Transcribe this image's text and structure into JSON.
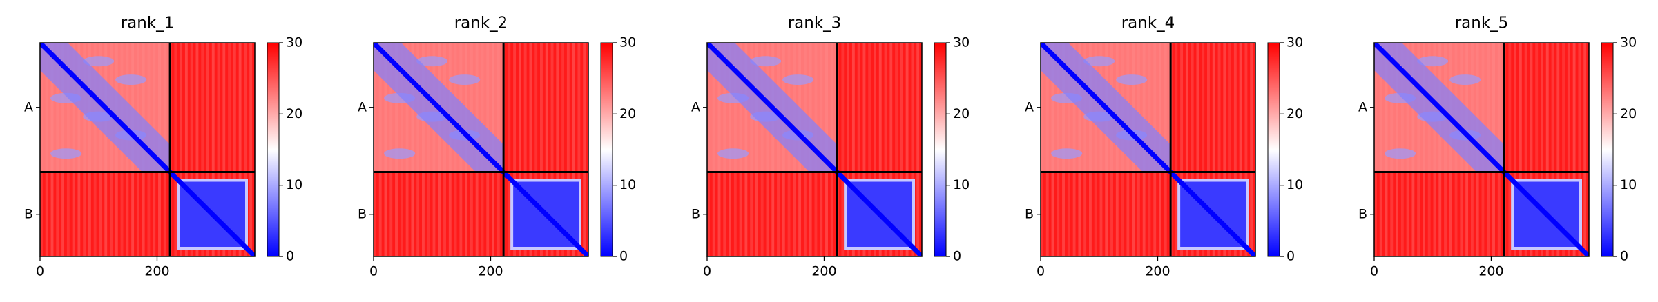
{
  "chart_data": [
    {
      "type": "heatmap",
      "title": "rank_1",
      "xlim": [
        0,
        367
      ],
      "ylim": [
        0,
        367
      ],
      "xticks": [
        0,
        200
      ],
      "yticks": [
        {
          "value": 111,
          "label": "A"
        },
        {
          "value": 294.5,
          "label": "B"
        }
      ],
      "boundaries": [
        222
      ],
      "clim": [
        0,
        30
      ],
      "cticks": [
        0,
        10,
        20,
        30
      ],
      "colormap": [
        "#0000ff",
        "#ffffff",
        "#ff0000"
      ]
    },
    {
      "type": "heatmap",
      "title": "rank_2",
      "xlim": [
        0,
        367
      ],
      "ylim": [
        0,
        367
      ],
      "xticks": [
        0,
        200
      ],
      "yticks": [
        {
          "value": 111,
          "label": "A"
        },
        {
          "value": 294.5,
          "label": "B"
        }
      ],
      "boundaries": [
        222
      ],
      "clim": [
        0,
        30
      ],
      "cticks": [
        0,
        10,
        20,
        30
      ],
      "colormap": [
        "#0000ff",
        "#ffffff",
        "#ff0000"
      ]
    },
    {
      "type": "heatmap",
      "title": "rank_3",
      "xlim": [
        0,
        367
      ],
      "ylim": [
        0,
        367
      ],
      "xticks": [
        0,
        200
      ],
      "yticks": [
        {
          "value": 111,
          "label": "A"
        },
        {
          "value": 294.5,
          "label": "B"
        }
      ],
      "boundaries": [
        222
      ],
      "clim": [
        0,
        30
      ],
      "cticks": [
        0,
        10,
        20,
        30
      ],
      "colormap": [
        "#0000ff",
        "#ffffff",
        "#ff0000"
      ]
    },
    {
      "type": "heatmap",
      "title": "rank_4",
      "xlim": [
        0,
        367
      ],
      "ylim": [
        0,
        367
      ],
      "xticks": [
        0,
        200
      ],
      "yticks": [
        {
          "value": 111,
          "label": "A"
        },
        {
          "value": 294.5,
          "label": "B"
        }
      ],
      "boundaries": [
        222
      ],
      "clim": [
        0,
        30
      ],
      "cticks": [
        0,
        10,
        20,
        30
      ],
      "colormap": [
        "#0000ff",
        "#ffffff",
        "#ff0000"
      ]
    },
    {
      "type": "heatmap",
      "title": "rank_5",
      "xlim": [
        0,
        367
      ],
      "ylim": [
        0,
        367
      ],
      "xticks": [
        0,
        200
      ],
      "yticks": [
        {
          "value": 111,
          "label": "A"
        },
        {
          "value": 294.5,
          "label": "B"
        }
      ],
      "boundaries": [
        222
      ],
      "clim": [
        0,
        30
      ],
      "cticks": [
        0,
        10,
        20,
        30
      ],
      "colormap": [
        "#0000ff",
        "#ffffff",
        "#ff0000"
      ]
    }
  ]
}
